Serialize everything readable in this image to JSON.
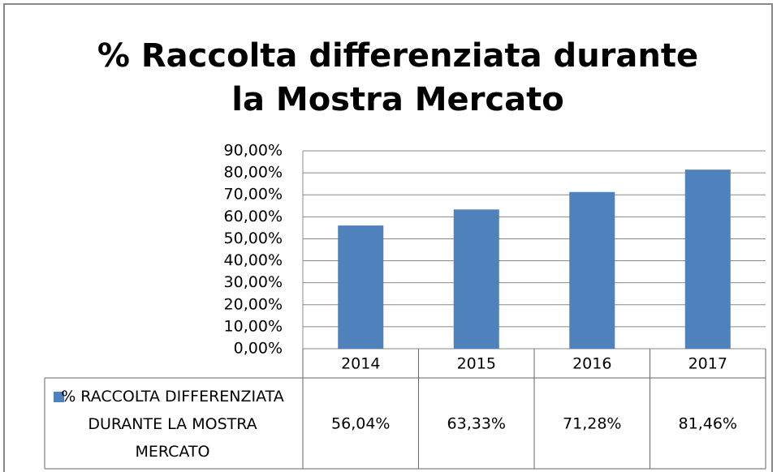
{
  "chart_data": {
    "type": "bar",
    "title": "% Raccolta differenziata durante la Mostra Mercato",
    "categories": [
      "2014",
      "2015",
      "2016",
      "2017"
    ],
    "series": [
      {
        "name": "% RACCOLTA DIFFERENZIATA DURANTE LA MOSTRA MERCATO",
        "color": "#4f81bd",
        "values": [
          56.04,
          63.33,
          71.28,
          81.46
        ],
        "value_labels": [
          "56,04%",
          "63,33%",
          "71,28%",
          "81,46%"
        ]
      }
    ],
    "ylim": [
      0,
      90
    ],
    "yticks": [
      {
        "value": 0,
        "label": "0,00%"
      },
      {
        "value": 10,
        "label": "10,00%"
      },
      {
        "value": 20,
        "label": "20,00%"
      },
      {
        "value": 30,
        "label": "30,00%"
      },
      {
        "value": 40,
        "label": "40,00%"
      },
      {
        "value": 50,
        "label": "50,00%"
      },
      {
        "value": 60,
        "label": "60,00%"
      },
      {
        "value": 70,
        "label": "70,00%"
      },
      {
        "value": 80,
        "label": "80,00%"
      },
      {
        "value": 90,
        "label": "90,00%"
      }
    ],
    "grid": true
  }
}
